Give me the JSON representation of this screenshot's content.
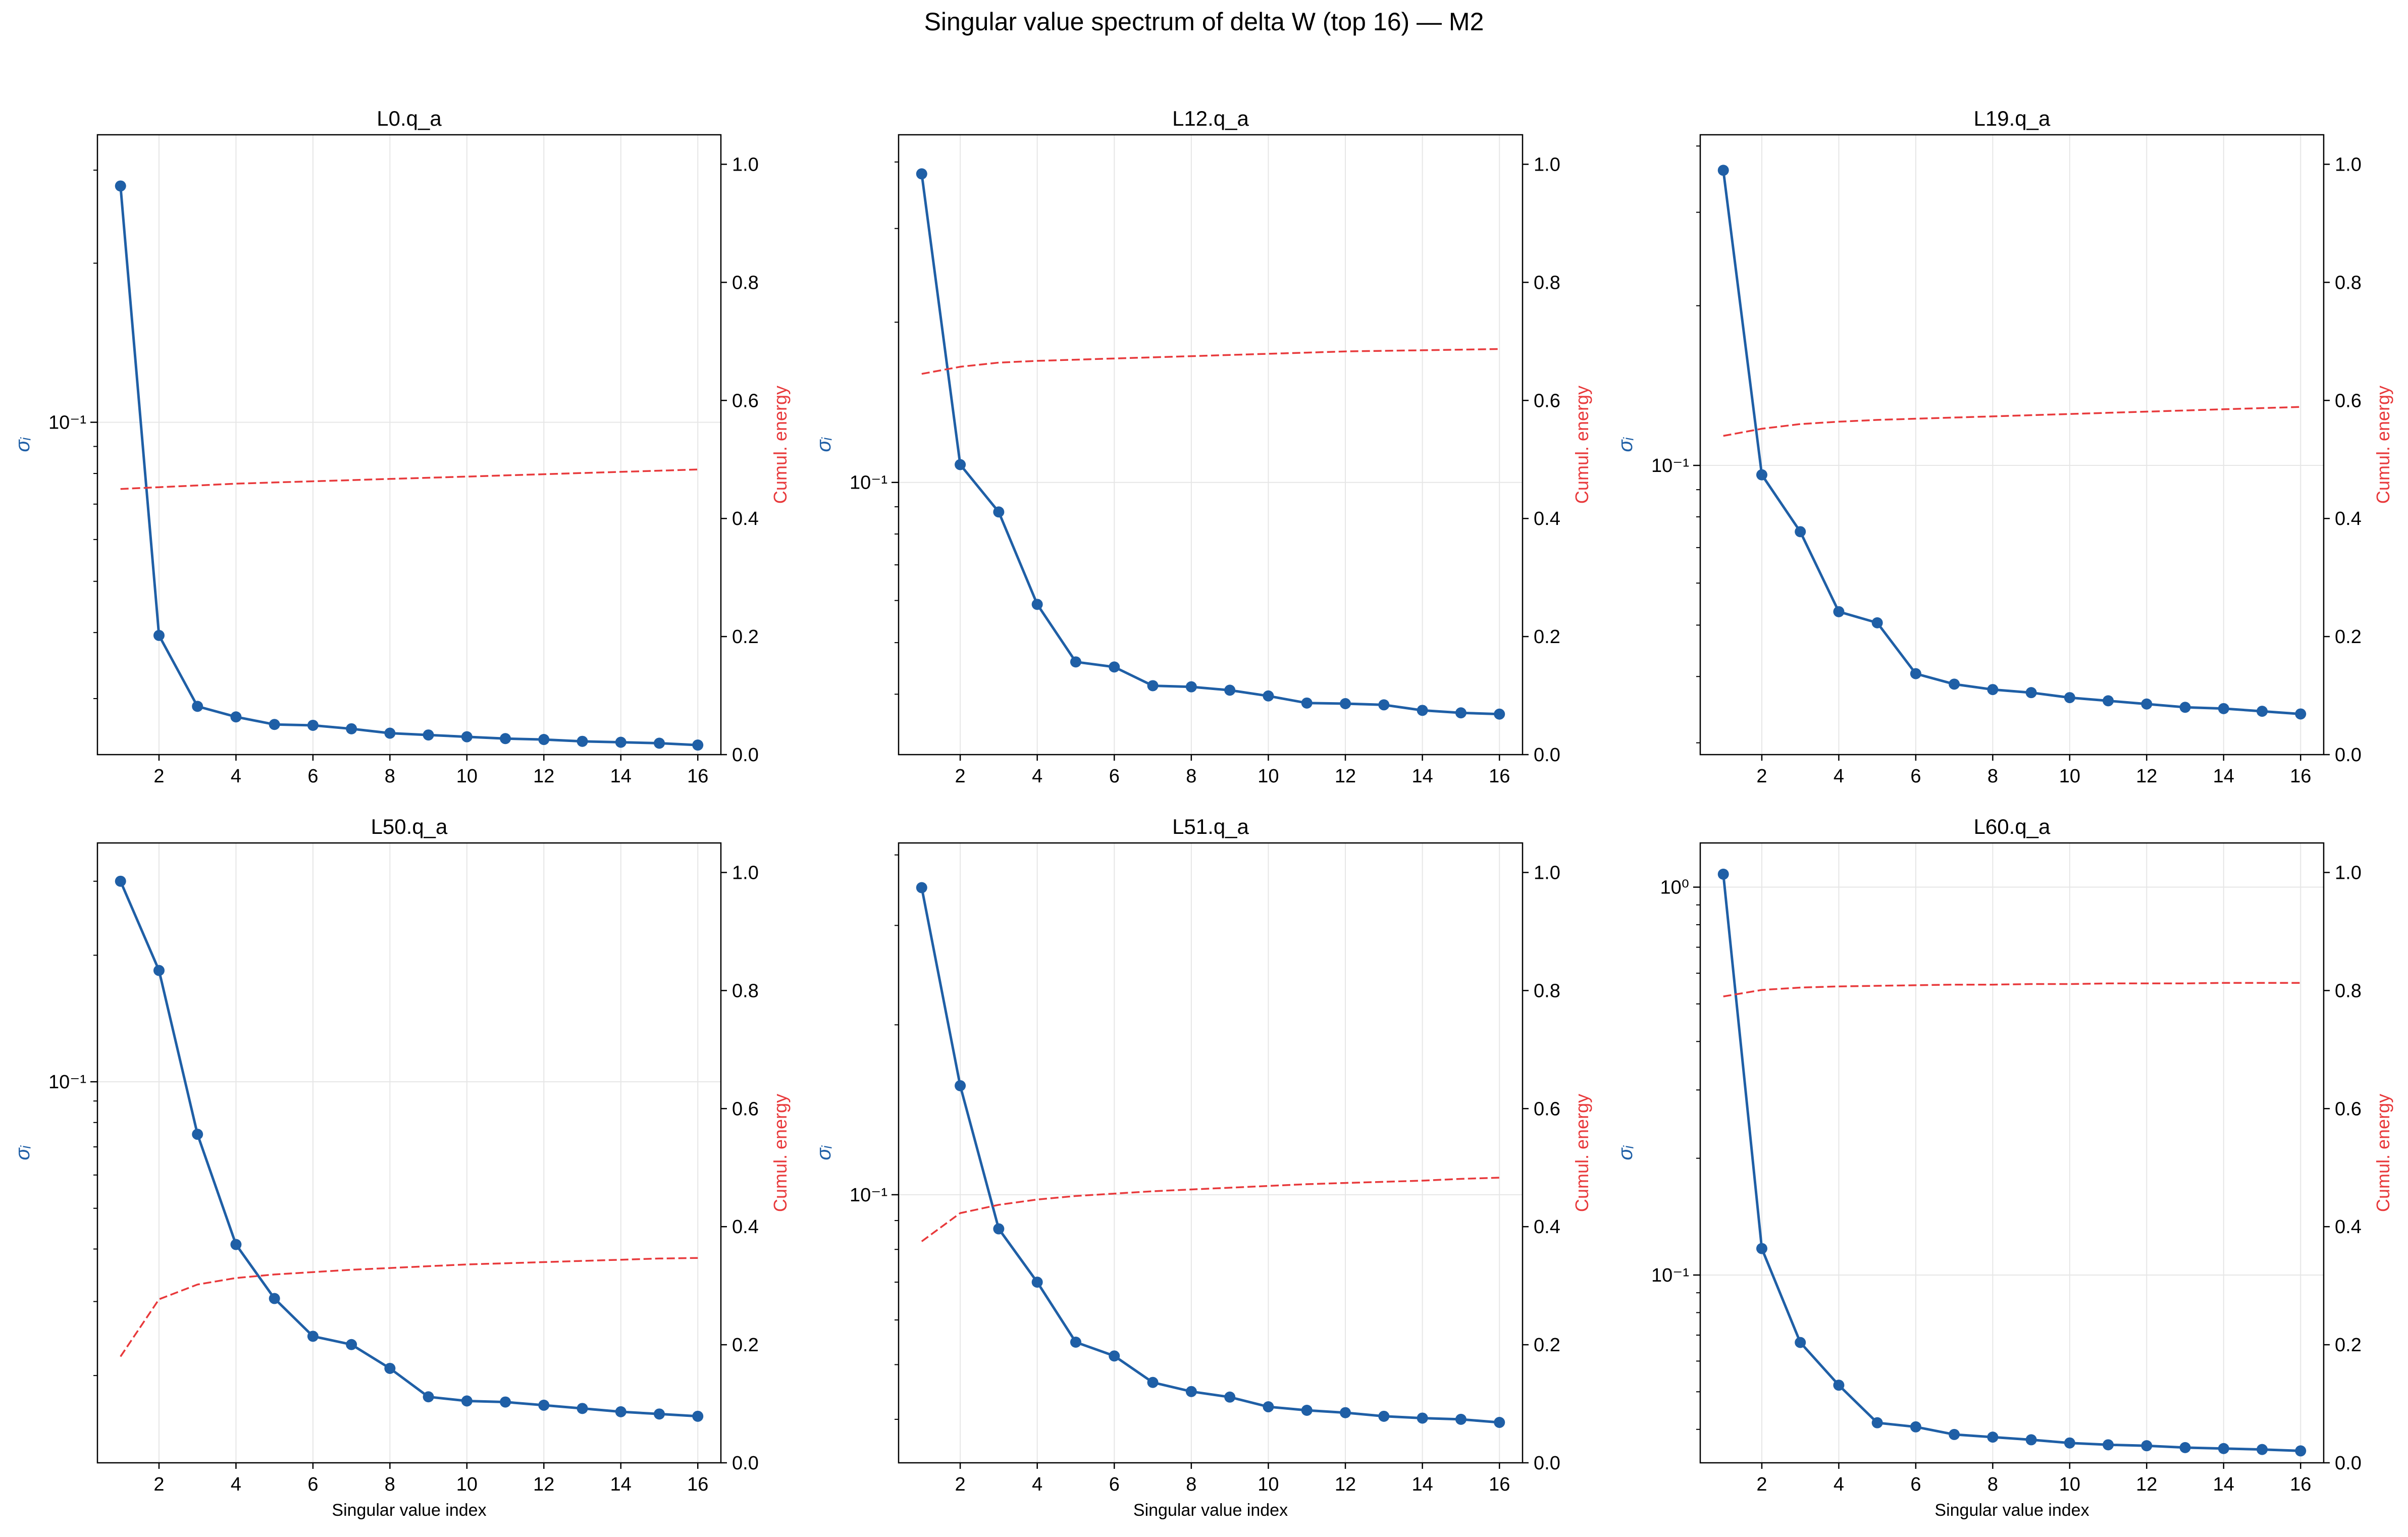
{
  "figure": {
    "title": "Singular value spectrum of delta W (top 16) — M2"
  },
  "colors": {
    "sigma_line": "#1f5fa6",
    "energy_line": "#e8393b",
    "grid": "#e6e6e6",
    "axis": "#000000"
  },
  "chart_data": [
    {
      "type": "line",
      "title": "L0.q_a",
      "xlabel": "",
      "ylabel_left": "σᵢ",
      "ylabel_right": "Cumul. energy",
      "x": [
        1,
        2,
        3,
        4,
        5,
        6,
        7,
        8,
        9,
        10,
        11,
        12,
        13,
        14,
        15,
        16
      ],
      "xticks": [
        2,
        4,
        6,
        8,
        10,
        12,
        14,
        16
      ],
      "left_scale": "log",
      "left_ylim": [
        0.0235,
        0.35
      ],
      "left_yticks": [
        {
          "value": 0.1,
          "label": "10⁻¹"
        }
      ],
      "right_ylim": [
        0,
        1.05
      ],
      "right_yticks": [
        0.0,
        0.2,
        0.4,
        0.6,
        0.8,
        1.0
      ],
      "grid": true,
      "series": [
        {
          "axis": "left",
          "style": "solid-markers",
          "values": [
            0.28,
            0.0395,
            0.029,
            0.0277,
            0.0268,
            0.0267,
            0.0263,
            0.0258,
            0.0256,
            0.0254,
            0.0252,
            0.0251,
            0.0249,
            0.0248,
            0.0247,
            0.0245
          ]
        },
        {
          "axis": "right",
          "style": "dashed",
          "values": [
            0.45,
            0.453,
            0.456,
            0.459,
            0.461,
            0.463,
            0.465,
            0.467,
            0.469,
            0.471,
            0.473,
            0.475,
            0.477,
            0.479,
            0.481,
            0.483
          ]
        }
      ]
    },
    {
      "type": "line",
      "title": "L12.q_a",
      "xlabel": "",
      "ylabel_left": "σᵢ",
      "ylabel_right": "Cumul. energy",
      "x": [
        1,
        2,
        3,
        4,
        5,
        6,
        7,
        8,
        9,
        10,
        11,
        12,
        13,
        14,
        15,
        16
      ],
      "xticks": [
        2,
        4,
        6,
        8,
        10,
        12,
        14,
        16
      ],
      "left_scale": "log",
      "left_ylim": [
        0.0308,
        0.45
      ],
      "left_yticks": [
        {
          "value": 0.1,
          "label": "10⁻¹"
        }
      ],
      "right_ylim": [
        0,
        1.05
      ],
      "right_yticks": [
        0.0,
        0.2,
        0.4,
        0.6,
        0.8,
        1.0
      ],
      "grid": true,
      "series": [
        {
          "axis": "left",
          "style": "solid-markers",
          "values": [
            0.38,
            0.108,
            0.088,
            0.059,
            0.046,
            0.045,
            0.0415,
            0.0413,
            0.0407,
            0.0397,
            0.0385,
            0.0384,
            0.0382,
            0.0373,
            0.0369,
            0.0367
          ]
        },
        {
          "axis": "right",
          "style": "dashed",
          "values": [
            0.645,
            0.657,
            0.664,
            0.667,
            0.669,
            0.671,
            0.673,
            0.675,
            0.677,
            0.679,
            0.681,
            0.683,
            0.684,
            0.685,
            0.686,
            0.687
          ]
        }
      ]
    },
    {
      "type": "line",
      "title": "L19.q_a",
      "xlabel": "",
      "ylabel_left": "σᵢ",
      "ylabel_right": "Cumul. energy",
      "x": [
        1,
        2,
        3,
        4,
        5,
        6,
        7,
        8,
        9,
        10,
        11,
        12,
        13,
        14,
        15,
        16
      ],
      "xticks": [
        2,
        4,
        6,
        8,
        10,
        12,
        14,
        16
      ],
      "left_scale": "log",
      "left_ylim": [
        0.0285,
        0.42
      ],
      "left_yticks": [
        {
          "value": 0.1,
          "label": "10⁻¹"
        }
      ],
      "right_ylim": [
        0,
        1.05
      ],
      "right_yticks": [
        0.0,
        0.2,
        0.4,
        0.6,
        0.8,
        1.0
      ],
      "grid": true,
      "series": [
        {
          "axis": "left",
          "style": "solid-markers",
          "values": [
            0.36,
            0.096,
            0.075,
            0.053,
            0.0505,
            0.0405,
            0.0387,
            0.0378,
            0.0373,
            0.0365,
            0.036,
            0.0355,
            0.035,
            0.0348,
            0.0344,
            0.034
          ]
        },
        {
          "axis": "right",
          "style": "dashed",
          "values": [
            0.54,
            0.552,
            0.56,
            0.564,
            0.567,
            0.569,
            0.571,
            0.573,
            0.575,
            0.577,
            0.579,
            0.581,
            0.583,
            0.585,
            0.587,
            0.589
          ]
        }
      ]
    },
    {
      "type": "line",
      "title": "L50.q_a",
      "xlabel": "Singular value index",
      "ylabel_left": "σᵢ",
      "ylabel_right": "Cumul. energy",
      "x": [
        1,
        2,
        3,
        4,
        5,
        6,
        7,
        8,
        9,
        10,
        11,
        12,
        13,
        14,
        15,
        16
      ],
      "xticks": [
        2,
        4,
        6,
        8,
        10,
        12,
        14,
        16
      ],
      "left_scale": "log",
      "left_ylim": [
        0.0124,
        0.37
      ],
      "left_yticks": [
        {
          "value": 0.1,
          "label": "10⁻¹"
        }
      ],
      "right_ylim": [
        0,
        1.05
      ],
      "right_yticks": [
        0.0,
        0.2,
        0.4,
        0.6,
        0.8,
        1.0
      ],
      "grid": true,
      "series": [
        {
          "axis": "left",
          "style": "solid-markers",
          "values": [
            0.3,
            0.184,
            0.075,
            0.041,
            0.0305,
            0.0248,
            0.0237,
            0.0208,
            0.0178,
            0.0174,
            0.0173,
            0.017,
            0.0167,
            0.0164,
            0.0162,
            0.016
          ]
        },
        {
          "axis": "right",
          "style": "dashed",
          "values": [
            0.18,
            0.277,
            0.302,
            0.313,
            0.319,
            0.323,
            0.327,
            0.33,
            0.333,
            0.336,
            0.338,
            0.34,
            0.342,
            0.344,
            0.346,
            0.347
          ]
        }
      ]
    },
    {
      "type": "line",
      "title": "L51.q_a",
      "xlabel": "Singular value index",
      "ylabel_left": "σᵢ",
      "ylabel_right": "Cumul. energy",
      "x": [
        1,
        2,
        3,
        4,
        5,
        6,
        7,
        8,
        9,
        10,
        11,
        12,
        13,
        14,
        15,
        16
      ],
      "xticks": [
        2,
        4,
        6,
        8,
        10,
        12,
        14,
        16
      ],
      "left_scale": "log",
      "left_ylim": [
        0.0335,
        0.42
      ],
      "left_yticks": [
        {
          "value": 0.1,
          "label": "10⁻¹"
        }
      ],
      "right_ylim": [
        0,
        1.05
      ],
      "right_yticks": [
        0.0,
        0.2,
        0.4,
        0.6,
        0.8,
        1.0
      ],
      "grid": true,
      "series": [
        {
          "axis": "left",
          "style": "solid-markers",
          "values": [
            0.35,
            0.156,
            0.087,
            0.07,
            0.0548,
            0.0518,
            0.0465,
            0.0448,
            0.0438,
            0.0421,
            0.0415,
            0.0411,
            0.0405,
            0.0402,
            0.04,
            0.0395
          ]
        },
        {
          "axis": "right",
          "style": "dashed",
          "values": [
            0.375,
            0.423,
            0.437,
            0.446,
            0.452,
            0.456,
            0.46,
            0.463,
            0.466,
            0.469,
            0.472,
            0.474,
            0.476,
            0.478,
            0.481,
            0.483
          ]
        }
      ]
    },
    {
      "type": "line",
      "title": "L60.q_a",
      "xlabel": "Singular value index",
      "ylabel_left": "σᵢ",
      "ylabel_right": "Cumul. energy",
      "x": [
        1,
        2,
        3,
        4,
        5,
        6,
        7,
        8,
        9,
        10,
        11,
        12,
        13,
        14,
        15,
        16
      ],
      "xticks": [
        2,
        4,
        6,
        8,
        10,
        12,
        14,
        16
      ],
      "left_scale": "log",
      "left_ylim": [
        0.0328,
        1.3
      ],
      "left_yticks": [
        {
          "value": 0.1,
          "label": "10⁻¹"
        },
        {
          "value": 1.0,
          "label": "10⁰"
        }
      ],
      "right_ylim": [
        0,
        1.05
      ],
      "right_yticks": [
        0.0,
        0.2,
        0.4,
        0.6,
        0.8,
        1.0
      ],
      "grid": true,
      "series": [
        {
          "axis": "left",
          "style": "solid-markers",
          "values": [
            1.08,
            0.117,
            0.067,
            0.052,
            0.0416,
            0.0406,
            0.0388,
            0.0382,
            0.0376,
            0.0369,
            0.0365,
            0.0363,
            0.0359,
            0.0357,
            0.0355,
            0.0352
          ]
        },
        {
          "axis": "right",
          "style": "dashed",
          "values": [
            0.79,
            0.801,
            0.805,
            0.807,
            0.808,
            0.809,
            0.81,
            0.81,
            0.811,
            0.811,
            0.812,
            0.812,
            0.812,
            0.813,
            0.813,
            0.813
          ]
        }
      ]
    }
  ]
}
